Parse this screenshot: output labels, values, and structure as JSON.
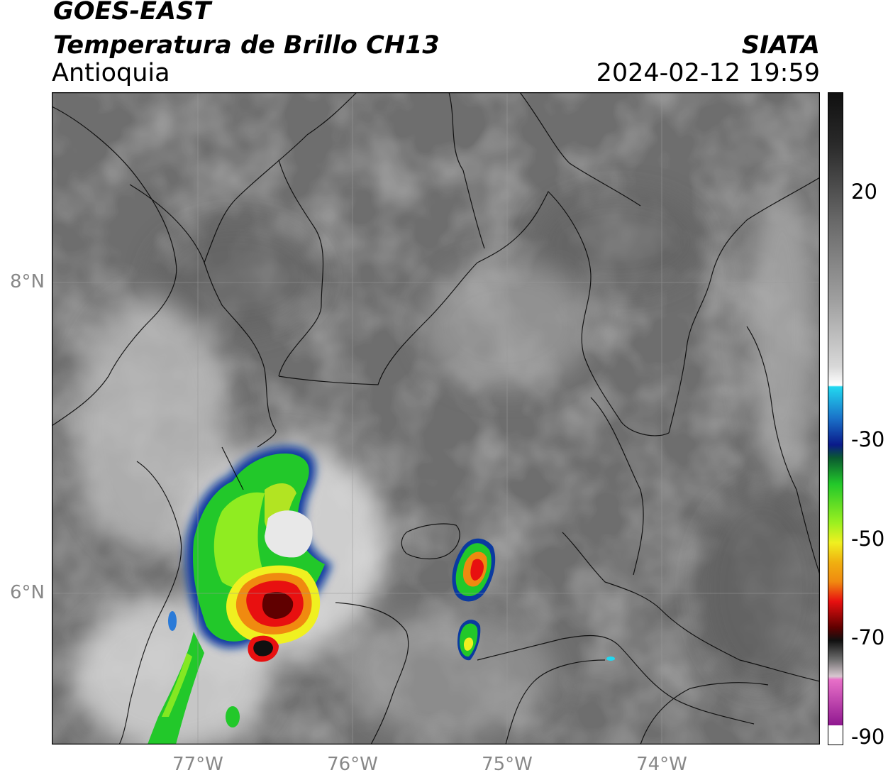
{
  "header": {
    "satellite": "GOES-EAST",
    "product": "Temperatura de Brillo CH13",
    "region": "Antioquia",
    "organization": "SIATA",
    "datetime": "2024-02-12 19:59"
  },
  "map": {
    "lat_labels": [
      "8°N",
      "6°N"
    ],
    "lon_labels": [
      "77°W",
      "76°W",
      "75°W",
      "74°W"
    ],
    "extent": {
      "lon_min": -77.95,
      "lon_max": -72.98,
      "lat_min": 4.97,
      "lat_max": 9.2
    }
  },
  "colorbar": {
    "tick_labels": [
      "20",
      "-30",
      "-50",
      "-70",
      "-90"
    ],
    "unit_hint": "°C",
    "colors": {
      "warm_gray": "#8a8a8a",
      "cyan": "#22d8f0",
      "dark_blue": "#0a1a8a",
      "green": "#22c82a",
      "yellow": "#f0f020",
      "orange": "#f08a10",
      "red": "#e81010",
      "dark_red": "#600000",
      "black": "#101010",
      "magenta": "#b020b0"
    }
  }
}
